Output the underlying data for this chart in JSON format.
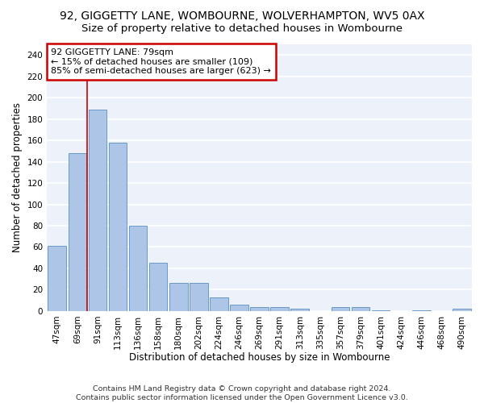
{
  "title1": "92, GIGGETTY LANE, WOMBOURNE, WOLVERHAMPTON, WV5 0AX",
  "title2": "Size of property relative to detached houses in Wombourne",
  "xlabel": "Distribution of detached houses by size in Wombourne",
  "ylabel": "Number of detached properties",
  "categories": [
    "47sqm",
    "69sqm",
    "91sqm",
    "113sqm",
    "136sqm",
    "158sqm",
    "180sqm",
    "202sqm",
    "224sqm",
    "246sqm",
    "269sqm",
    "291sqm",
    "313sqm",
    "335sqm",
    "357sqm",
    "379sqm",
    "401sqm",
    "424sqm",
    "446sqm",
    "468sqm",
    "490sqm"
  ],
  "values": [
    61,
    148,
    189,
    158,
    80,
    45,
    26,
    26,
    13,
    6,
    4,
    4,
    2,
    0,
    4,
    4,
    1,
    0,
    1,
    0,
    2
  ],
  "bar_color": "#adc6e8",
  "bar_edge_color": "#5a8fc2",
  "highlight_color": "#cc0000",
  "annotation_line1": "92 GIGGETTY LANE: 79sqm",
  "annotation_line2": "← 15% of detached houses are smaller (109)",
  "annotation_line3": "85% of semi-detached houses are larger (623) →",
  "annotation_box_color": "#cc0000",
  "ylim": [
    0,
    250
  ],
  "yticks": [
    0,
    20,
    40,
    60,
    80,
    100,
    120,
    140,
    160,
    180,
    200,
    220,
    240
  ],
  "footer": "Contains HM Land Registry data © Crown copyright and database right 2024.\nContains public sector information licensed under the Open Government Licence v3.0.",
  "bg_color": "#edf2fa",
  "grid_color": "#ffffff",
  "title1_fontsize": 10,
  "title2_fontsize": 9.5,
  "xlabel_fontsize": 8.5,
  "ylabel_fontsize": 8.5,
  "tick_fontsize": 7.5,
  "annotation_fontsize": 8,
  "footer_fontsize": 6.8
}
